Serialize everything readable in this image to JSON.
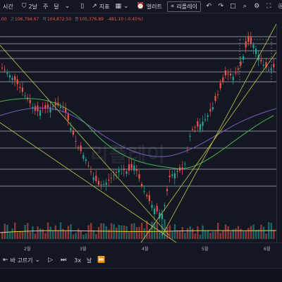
{
  "toolbar": {
    "interval_label": "시간",
    "range_label": "2날",
    "week_label": "주",
    "month_label": "달",
    "indicators_label": "지표",
    "alert_label": "얼러트",
    "replay_label": "리플레이",
    "icons": [
      "candles-icon",
      "indicators-icon",
      "layout-icon",
      "alert-icon",
      "replay-icon",
      "undo-icon",
      "redo-icon",
      "fullscreen-icon",
      "settings-icon",
      "camera-icon"
    ]
  },
  "ohlc": {
    "open_value": ".00",
    "high_label": "고",
    "high_value": "106,794.67",
    "low_label": "저",
    "low_value": "104,872.50",
    "close_label": "종",
    "close_value": "105,376.89",
    "change": "-481.10 (-0.45%)"
  },
  "watermark": "리플레이",
  "time_axis": {
    "labels": [
      "2월",
      "3월",
      "4월",
      "5월",
      "6월"
    ]
  },
  "bottombar": {
    "back_label": "바 고르기",
    "speed_label": "3x",
    "day_label": "날"
  },
  "chart_data": {
    "type": "candlestick",
    "x": [
      "2월",
      "3월",
      "4월",
      "5월",
      "6월"
    ],
    "overlays": [
      "horizontal support/resistance lines",
      "trend lines",
      "moving averages",
      "volume bars"
    ],
    "colors": {
      "up": "#26a69a",
      "down": "#ef5350",
      "ma_short": "#c6c34a",
      "ma_long": "#7e57c2",
      "ma_mid": "#4caf50",
      "volume_ma": "#e6d035",
      "background": "#131722"
    }
  }
}
